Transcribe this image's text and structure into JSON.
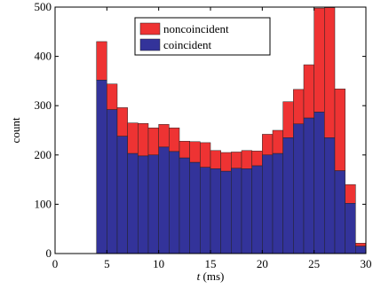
{
  "chart_data": {
    "type": "bar",
    "stacked": true,
    "bin_width": 1,
    "x": [
      0.5,
      1.5,
      2.5,
      3.5,
      4.5,
      5.5,
      6.5,
      7.5,
      8.5,
      9.5,
      10.5,
      11.5,
      12.5,
      13.5,
      14.5,
      15.5,
      16.5,
      17.5,
      18.5,
      19.5,
      20.5,
      21.5,
      22.5,
      23.5,
      24.5,
      25.5,
      26.5,
      27.5,
      28.5,
      29.5
    ],
    "series": [
      {
        "name": "coincident",
        "color": "#33339a",
        "values": [
          0,
          0,
          0,
          0,
          352,
          292,
          238,
          203,
          198,
          200,
          216,
          207,
          194,
          185,
          175,
          172,
          167,
          173,
          172,
          178,
          200,
          203,
          235,
          263,
          275,
          287,
          235,
          168,
          102,
          15
        ]
      },
      {
        "name": "noncoincident",
        "color": "#ee3333",
        "values": [
          0,
          0,
          0,
          0,
          78,
          52,
          58,
          62,
          66,
          55,
          46,
          48,
          34,
          42,
          50,
          37,
          38,
          33,
          37,
          30,
          42,
          47,
          73,
          70,
          108,
          211,
          264,
          166,
          38,
          6
        ]
      }
    ],
    "xlabel": "t (ms)",
    "ylabel": "count",
    "xlim": [
      0,
      30
    ],
    "ylim": [
      0,
      500
    ],
    "xticks": [
      0,
      5,
      10,
      15,
      20,
      25,
      30
    ],
    "yticks": [
      0,
      100,
      200,
      300,
      400,
      500
    ],
    "legend": {
      "placement": "top-center",
      "entries": [
        {
          "label": "noncoincident",
          "color": "#ee3333"
        },
        {
          "label": "coincident",
          "color": "#33339a"
        }
      ]
    },
    "grid": false
  }
}
